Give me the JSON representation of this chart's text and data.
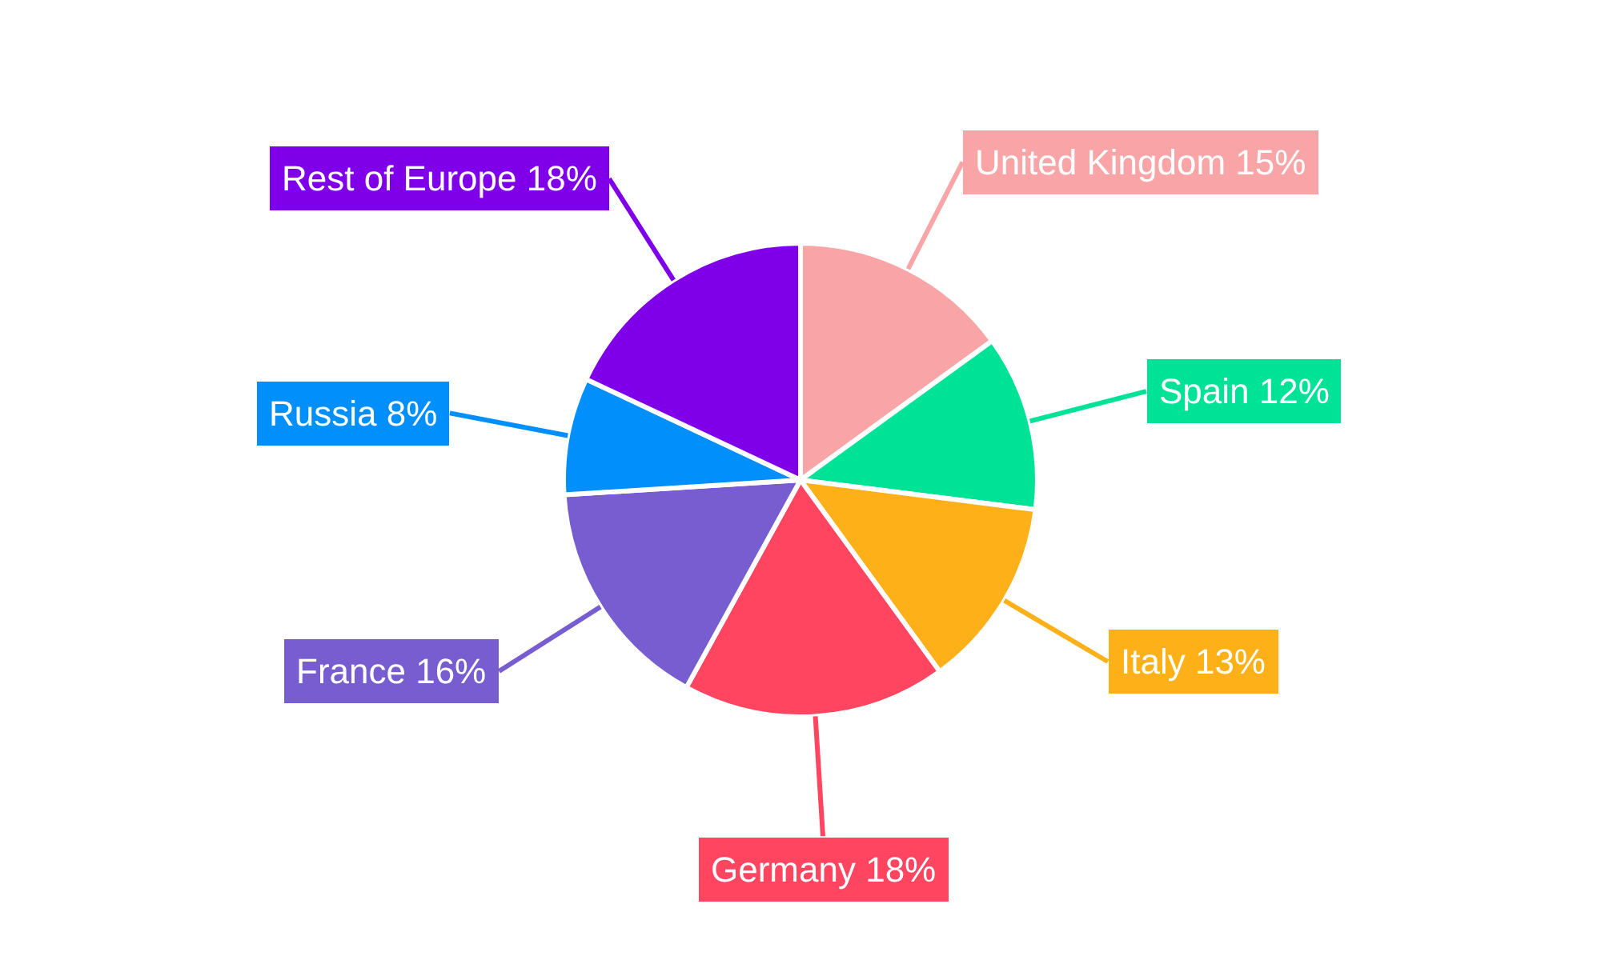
{
  "chart_data": {
    "type": "pie",
    "categories": [
      "United Kingdom",
      "Spain",
      "Italy",
      "Germany",
      "France",
      "Russia",
      "Rest of Europe"
    ],
    "values": [
      15,
      12,
      13,
      18,
      16,
      8,
      18
    ],
    "value_labels": [
      "15%",
      "12%",
      "13%",
      "18%",
      "16%",
      "8%",
      "18%"
    ],
    "colors": [
      "#f9a5a7",
      "#00e396",
      "#feb019",
      "#ff4560",
      "#775dd0",
      "#008ffb",
      "#7f00e8"
    ],
    "legend": false
  }
}
